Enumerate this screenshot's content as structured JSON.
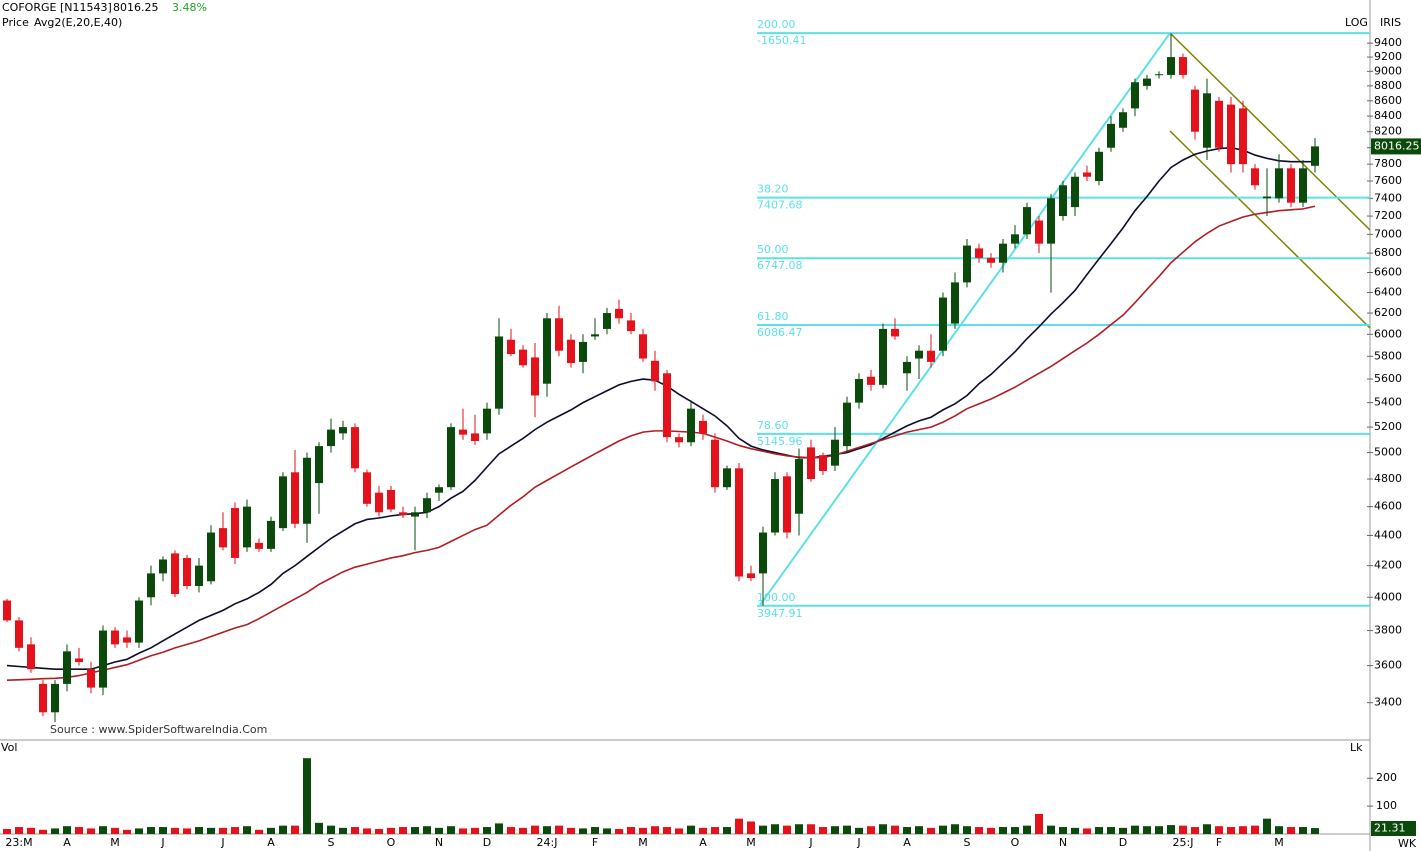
{
  "chart_data": {
    "type": "candlestick",
    "symbol": "COFORGE [N11543]",
    "change": "3.48%",
    "price_label": "Price",
    "averages_label": "Avg2(E,20,E,40)",
    "scale_mode": "LOG",
    "brand": "IRIS",
    "source": "Source : www.SpiderSoftwareIndia.Com",
    "volume_label": "Vol",
    "volume_unit": "Lk",
    "period": "WK",
    "log_scale": true,
    "up_color": "#0b4a0b",
    "down_color": "#e3121b",
    "categories": [
      null,
      "23:M",
      null,
      null,
      null,
      "A",
      null,
      null,
      null,
      "M",
      null,
      null,
      null,
      "J",
      null,
      null,
      null,
      null,
      "J",
      null,
      null,
      null,
      "A",
      null,
      null,
      null,
      null,
      "S",
      null,
      null,
      null,
      null,
      "O",
      null,
      null,
      null,
      "N",
      null,
      null,
      null,
      "D",
      null,
      null,
      null,
      null,
      "24:J",
      null,
      null,
      null,
      "F",
      null,
      null,
      null,
      "M",
      null,
      null,
      null,
      null,
      "A",
      null,
      null,
      null,
      "M",
      null,
      null,
      null,
      null,
      "J",
      null,
      null,
      null,
      "J",
      null,
      null,
      null,
      "A",
      null,
      null,
      null,
      null,
      "S",
      null,
      null,
      null,
      "O",
      null,
      null,
      null,
      "N",
      null,
      null,
      null,
      null,
      "D",
      null,
      null,
      null,
      null,
      "25:J",
      null,
      null,
      "F",
      null,
      null,
      null,
      null,
      "M",
      null,
      null,
      null
    ],
    "open": [
      3980,
      3860,
      3720,
      3500,
      3350,
      3500,
      3640,
      3580,
      3480,
      3800,
      3760,
      3730,
      4000,
      4150,
      4280,
      4250,
      4070,
      4100,
      4450,
      4590,
      4320,
      4350,
      4310,
      4450,
      4850,
      4480,
      4770,
      5050,
      5150,
      5200,
      4850,
      4700,
      4720,
      4560,
      4530,
      4560,
      4700,
      4740,
      5180,
      5150,
      5150,
      5350,
      5950,
      5860,
      5790,
      5560,
      6150,
      5950,
      5750,
      5980,
      6050,
      6240,
      6130,
      6000,
      5760,
      5650,
      5120,
      5080,
      5250,
      5100,
      4740,
      4880,
      4150,
      4150,
      4420,
      4820,
      4550,
      5040,
      4980,
      4900,
      5050,
      5400,
      5620,
      5550,
      6050,
      5650,
      5780,
      5850,
      5850,
      6100,
      6500,
      6850,
      6750,
      6700,
      6900,
      7000,
      7150,
      6900,
      7200,
      7300,
      7700,
      7600,
      8000,
      8250,
      8500,
      8800,
      8950,
      8950,
      9200,
      8750,
      8000,
      8600,
      8550,
      8500,
      7750,
      7400,
      7400,
      7750,
      7350,
      7780
    ],
    "high": [
      3990,
      3880,
      3760,
      3520,
      3520,
      3720,
      3700,
      3620,
      3830,
      3820,
      3800,
      4000,
      4200,
      4260,
      4300,
      4270,
      4250,
      4470,
      4560,
      4630,
      4650,
      4380,
      4530,
      4850,
      5020,
      5000,
      5080,
      5270,
      5250,
      5230,
      4870,
      4750,
      4750,
      4600,
      4600,
      4700,
      4760,
      5230,
      5350,
      5300,
      5400,
      6150,
      6050,
      5900,
      5920,
      6200,
      6270,
      6000,
      6000,
      6150,
      6250,
      6330,
      6200,
      6050,
      5850,
      5680,
      5150,
      5420,
      5300,
      5150,
      4900,
      4920,
      4200,
      4460,
      4850,
      4850,
      5030,
      5100,
      5000,
      5200,
      5450,
      5650,
      5680,
      6100,
      6150,
      5800,
      5900,
      6000,
      6400,
      6600,
      6950,
      6900,
      6800,
      6950,
      7100,
      7350,
      7200,
      7450,
      7600,
      7700,
      7780,
      8000,
      8400,
      8500,
      8900,
      8950,
      9000,
      9546,
      9250,
      8800,
      8900,
      8650,
      8650,
      8600,
      7800,
      7750,
      7920,
      7800,
      7850,
      8120
    ],
    "low": [
      3850,
      3680,
      3560,
      3330,
      3300,
      3460,
      3600,
      3450,
      3440,
      3700,
      3700,
      3700,
      3950,
      4100,
      4000,
      4050,
      4030,
      4080,
      4300,
      4210,
      4290,
      4290,
      4290,
      4430,
      4450,
      4350,
      4550,
      5000,
      5100,
      4850,
      4600,
      4530,
      4560,
      4520,
      4300,
      4520,
      4640,
      4720,
      5100,
      5060,
      5100,
      5300,
      5800,
      5700,
      5280,
      5450,
      5800,
      5700,
      5650,
      5950,
      6000,
      6100,
      6000,
      5750,
      5500,
      5080,
      5040,
      5050,
      5100,
      4700,
      4720,
      4100,
      4100,
      3948,
      4400,
      4380,
      4400,
      4780,
      4830,
      4860,
      5000,
      5350,
      5500,
      5520,
      5950,
      5500,
      5600,
      5700,
      5800,
      6050,
      6450,
      6700,
      6650,
      6600,
      6850,
      6950,
      6800,
      6400,
      7150,
      7200,
      7600,
      7550,
      7950,
      8200,
      8400,
      8750,
      8900,
      8900,
      8900,
      8100,
      7850,
      7950,
      7700,
      7700,
      7500,
      7200,
      7350,
      7300,
      7300,
      7700
    ],
    "close": [
      3860,
      3700,
      3580,
      3350,
      3500,
      3680,
      3620,
      3480,
      3800,
      3720,
      3730,
      3980,
      4150,
      4240,
      4020,
      4070,
      4200,
      4420,
      4320,
      4250,
      4600,
      4310,
      4500,
      4820,
      4480,
      4960,
      5050,
      5180,
      5200,
      4880,
      4620,
      4560,
      4580,
      4540,
      4560,
      4660,
      4740,
      5200,
      5140,
      5090,
      5350,
      5980,
      5820,
      5720,
      5460,
      6150,
      5850,
      5740,
      5930,
      6000,
      6200,
      6150,
      6030,
      5780,
      5580,
      5120,
      5080,
      5350,
      5150,
      4740,
      4880,
      4130,
      4120,
      4420,
      4800,
      4420,
      4950,
      4800,
      4860,
      5100,
      5400,
      5600,
      5550,
      6050,
      5980,
      5750,
      5850,
      5750,
      6350,
      6500,
      6880,
      6750,
      6700,
      6900,
      7000,
      7300,
      6900,
      7400,
      7550,
      7650,
      7650,
      7950,
      8300,
      8450,
      8850,
      8900,
      8960,
      9200,
      8950,
      8200,
      8700,
      8000,
      7800,
      7800,
      7550,
      7420,
      7750,
      7350,
      7750,
      8016.25
    ],
    "volume": [
      18,
      25,
      22,
      15,
      20,
      28,
      25,
      20,
      28,
      22,
      15,
      20,
      25,
      25,
      22,
      20,
      25,
      22,
      22,
      25,
      28,
      15,
      22,
      30,
      30,
      272,
      40,
      30,
      22,
      25,
      20,
      18,
      22,
      25,
      25,
      28,
      22,
      28,
      20,
      22,
      25,
      38,
      25,
      22,
      30,
      28,
      30,
      22,
      20,
      25,
      20,
      18,
      25,
      22,
      28,
      25,
      20,
      30,
      22,
      25,
      25,
      55,
      45,
      30,
      35,
      30,
      35,
      35,
      25,
      28,
      30,
      22,
      28,
      35,
      30,
      25,
      28,
      22,
      30,
      35,
      28,
      25,
      22,
      25,
      25,
      30,
      72,
      30,
      25,
      22,
      20,
      25,
      25,
      22,
      30,
      28,
      28,
      32,
      30,
      25,
      35,
      28,
      25,
      28,
      30,
      55,
      28,
      25,
      25,
      21.31
    ],
    "averages": [
      {
        "color": "#0d0d2b",
        "values": [
          3600,
          3595,
          3590,
          3585,
          3580,
          3580,
          3580,
          3580,
          3600,
          3620,
          3635,
          3670,
          3700,
          3740,
          3780,
          3820,
          3860,
          3890,
          3920,
          3960,
          3990,
          4030,
          4080,
          4150,
          4200,
          4260,
          4320,
          4380,
          4430,
          4480,
          4510,
          4520,
          4535,
          4545,
          4550,
          4560,
          4600,
          4660,
          4710,
          4790,
          4890,
          4990,
          5050,
          5110,
          5180,
          5240,
          5290,
          5340,
          5400,
          5450,
          5500,
          5550,
          5580,
          5600,
          5590,
          5540,
          5470,
          5410,
          5350,
          5290,
          5210,
          5110,
          5050,
          5020,
          5000,
          4980,
          4960,
          4960,
          4970,
          4985,
          5000,
          5030,
          5060,
          5110,
          5160,
          5210,
          5250,
          5280,
          5340,
          5390,
          5460,
          5560,
          5640,
          5740,
          5840,
          5960,
          6070,
          6190,
          6300,
          6420,
          6580,
          6740,
          6900,
          7070,
          7260,
          7420,
          7600,
          7760,
          7850,
          7920,
          7960,
          7990,
          8000,
          7970,
          7910,
          7870,
          7840,
          7830,
          7830,
          7830
        ]
      },
      {
        "color": "#b01e23",
        "values": [
          3520,
          3522,
          3525,
          3528,
          3530,
          3535,
          3545,
          3560,
          3575,
          3590,
          3605,
          3630,
          3655,
          3675,
          3700,
          3720,
          3740,
          3765,
          3790,
          3815,
          3835,
          3870,
          3910,
          3950,
          3990,
          4030,
          4080,
          4120,
          4160,
          4190,
          4210,
          4230,
          4250,
          4265,
          4285,
          4300,
          4320,
          4360,
          4400,
          4440,
          4470,
          4540,
          4610,
          4670,
          4740,
          4790,
          4840,
          4890,
          4940,
          4990,
          5040,
          5090,
          5130,
          5160,
          5170,
          5170,
          5165,
          5160,
          5150,
          5120,
          5090,
          5055,
          5030,
          5010,
          4990,
          4975,
          4965,
          4960,
          4960,
          4980,
          5010,
          5040,
          5070,
          5100,
          5130,
          5160,
          5180,
          5200,
          5240,
          5290,
          5350,
          5390,
          5430,
          5480,
          5530,
          5590,
          5650,
          5710,
          5780,
          5850,
          5920,
          6000,
          6090,
          6180,
          6300,
          6430,
          6560,
          6700,
          6810,
          6920,
          7010,
          7090,
          7140,
          7190,
          7220,
          7240,
          7260,
          7270,
          7280,
          7310
        ]
      }
    ],
    "fib_color": "#5ce1e6",
    "fib_levels": [
      {
        "percent": "200.00",
        "price": -1650.41,
        "line_value": 9546
      },
      {
        "percent": "38.20",
        "price": 7407.68
      },
      {
        "percent": "50.00",
        "price": 6747.08
      },
      {
        "percent": "61.80",
        "price": 6086.47
      },
      {
        "percent": "78.60",
        "price": 5145.96
      },
      {
        "percent": "100.00",
        "price": 3947.91
      }
    ],
    "ylim": [
      3200,
      10000
    ],
    "yticks": [
      3400,
      3600,
      3800,
      4000,
      4200,
      4400,
      4600,
      4800,
      5000,
      5200,
      5400,
      5600,
      5800,
      6000,
      6200,
      6400,
      6600,
      6800,
      7000,
      7200,
      7400,
      7600,
      7800,
      8000,
      8200,
      8400,
      8600,
      8800,
      9000,
      9200,
      9400
    ],
    "volume_ylim": [
      0,
      330
    ],
    "volume_yticks": [
      100,
      200
    ]
  }
}
